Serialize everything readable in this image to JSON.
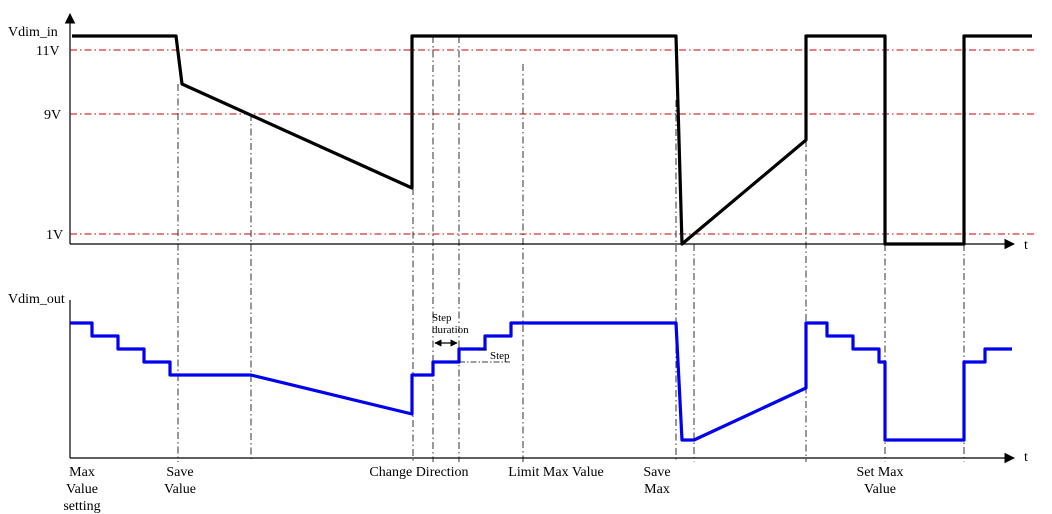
{
  "colors": {
    "input_trace": "#000000",
    "output_trace": "#0000ee",
    "threshold_line": "#cc0000",
    "event_line": "#000000"
  },
  "top_axis": {
    "y_label": "Vdim_in",
    "x_label": "t",
    "thresholds": [
      "11V",
      "9V",
      "1V"
    ]
  },
  "bottom_axis": {
    "y_label": "Vdim_out",
    "x_label": "t"
  },
  "annotations": {
    "step_duration": "Step duration",
    "step": "Step"
  },
  "events": [
    {
      "id": "max-value-setting",
      "label": "Max Value setting"
    },
    {
      "id": "save-value",
      "label": "Save Value"
    },
    {
      "id": "change-direction",
      "label": "Change Direction"
    },
    {
      "id": "limit-max-value",
      "label": "Limit Max Value"
    },
    {
      "id": "save-max",
      "label": "Save Max"
    },
    {
      "id": "set-max-value",
      "label": "Set Max Value"
    }
  ]
}
